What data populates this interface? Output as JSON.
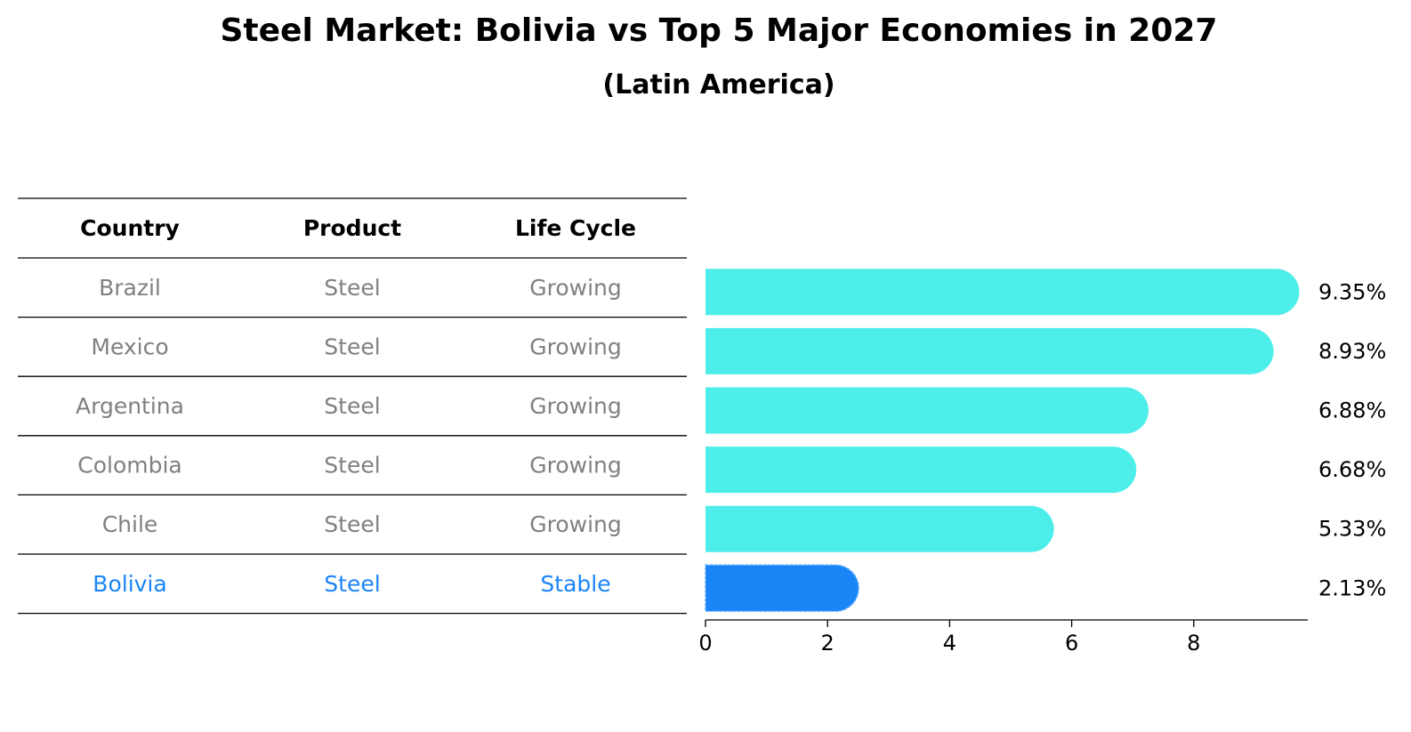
{
  "chart_data": {
    "type": "bar",
    "orientation": "horizontal",
    "title": "Steel Market: Bolivia vs Top 5 Major Economies in 2027",
    "subtitle": "(Latin America)",
    "xlim": [
      0,
      9.8
    ],
    "xticks": [
      "0",
      "2",
      "4",
      "6",
      "8"
    ],
    "table": {
      "headers": [
        "Country",
        "Product",
        "Life Cycle"
      ],
      "rows": [
        [
          "Brazil",
          "Steel",
          "Growing"
        ],
        [
          "Mexico",
          "Steel",
          "Growing"
        ],
        [
          "Argentina",
          "Steel",
          "Growing"
        ],
        [
          "Colombia",
          "Steel",
          "Growing"
        ],
        [
          "Chile",
          "Steel",
          "Growing"
        ],
        [
          "Bolivia",
          "Steel",
          "Stable"
        ]
      ]
    },
    "categories": [
      "Brazil",
      "Mexico",
      "Argentina",
      "Colombia",
      "Chile",
      "Bolivia"
    ],
    "values": [
      9.35,
      8.93,
      6.88,
      6.68,
      5.33,
      2.13
    ],
    "value_labels": [
      "9.35%",
      "8.93%",
      "6.88%",
      "6.68%",
      "5.33%",
      "2.13%"
    ],
    "highlight": "Bolivia"
  },
  "colors": {
    "bar": "#4DEEEA",
    "highlight": "#1A85F7",
    "row_text": "#808080",
    "highlight_text": "#1A85F7",
    "header_text": "#000000",
    "lines": "#000000"
  }
}
